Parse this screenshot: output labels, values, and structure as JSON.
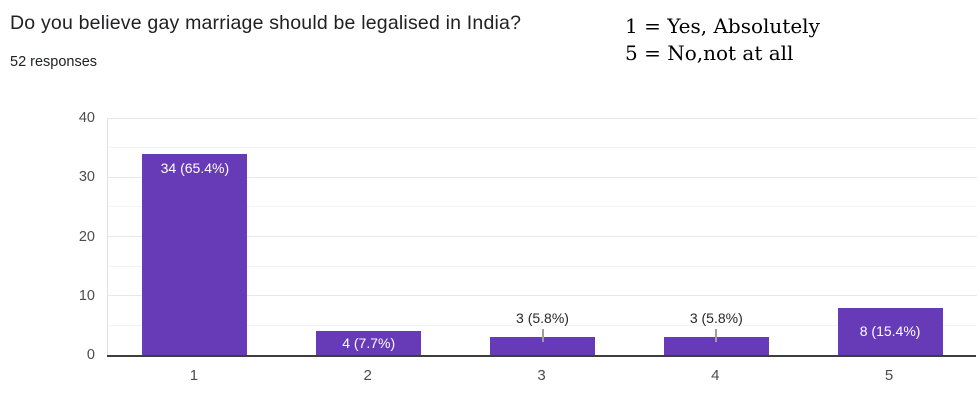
{
  "header": {
    "title": "Do you believe gay marriage should be legalised in India?",
    "responses": "52 responses"
  },
  "legend_note": {
    "lines": [
      "1 = Yes, Absolutely",
      "5 = No,not at all"
    ]
  },
  "chart_data": {
    "type": "bar",
    "title": "Do you believe gay marriage should be legalised in India?",
    "subtitle": "52 responses",
    "categories": [
      "1",
      "2",
      "3",
      "4",
      "5"
    ],
    "values": [
      34,
      4,
      3,
      3,
      8
    ],
    "bar_labels": [
      "34 (65.4%)",
      "4 (7.7%)",
      "3 (5.8%)",
      "3 (5.8%)",
      "8 (15.4%)"
    ],
    "label_placement": [
      "inside",
      "inside",
      "outside",
      "outside",
      "inside"
    ],
    "xlabel": "",
    "ylabel": "",
    "ylim": [
      0,
      40
    ],
    "y_ticks": [
      0,
      10,
      20,
      30,
      40
    ],
    "minor_step": 5,
    "major_step": 10,
    "grid": true,
    "legend_position": "none"
  },
  "colors": {
    "bar": "#673ab7",
    "grid_major": "#e8e8e8",
    "grid_minor": "#f4f4f4",
    "axis_line": "#3e3e3e",
    "plot_left_border": "#e2e2e2",
    "tick_label": "#4c4c4c",
    "inside_label": "#ffffff",
    "outside_label": "#272727",
    "leader_line": "#9e9e9e",
    "title_text": "#212124",
    "note_text": "#000000"
  }
}
